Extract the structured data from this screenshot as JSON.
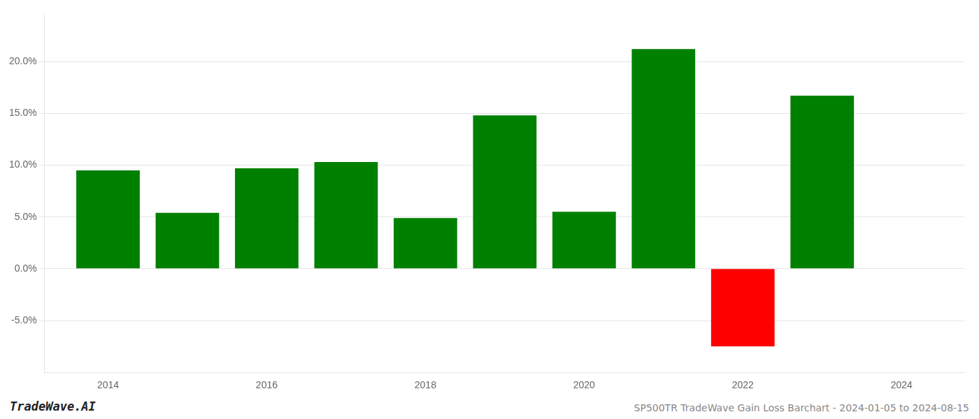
{
  "chart_data": {
    "type": "bar",
    "title": "SP500TR TradeWave Gain Loss Barchart - 2024-01-05 to 2024-08-15",
    "annotations": [
      "TradeWave.AI"
    ],
    "x": [
      2014,
      2015,
      2016,
      2017,
      2018,
      2019,
      2020,
      2021,
      2022,
      2023
    ],
    "values": [
      0.095,
      0.054,
      0.097,
      0.103,
      0.049,
      0.148,
      0.055,
      0.212,
      -0.075,
      0.167
    ],
    "colors": [
      "#008000",
      "#008000",
      "#008000",
      "#008000",
      "#008000",
      "#008000",
      "#008000",
      "#008000",
      "#ff0000",
      "#008000"
    ],
    "xlim": [
      2013.2,
      2024.8
    ],
    "xticks": [
      2014,
      2016,
      2018,
      2020,
      2022,
      2024
    ],
    "ylim": [
      -0.1,
      0.245
    ],
    "yticks": [
      {
        "value": -0.05,
        "label": "-5.0%"
      },
      {
        "value": 0.0,
        "label": "0.0%"
      },
      {
        "value": 0.05,
        "label": "5.0%"
      },
      {
        "value": 0.1,
        "label": "10.0%"
      },
      {
        "value": 0.15,
        "label": "15.0%"
      },
      {
        "value": 0.2,
        "label": "20.0%"
      }
    ],
    "grid": "y"
  }
}
